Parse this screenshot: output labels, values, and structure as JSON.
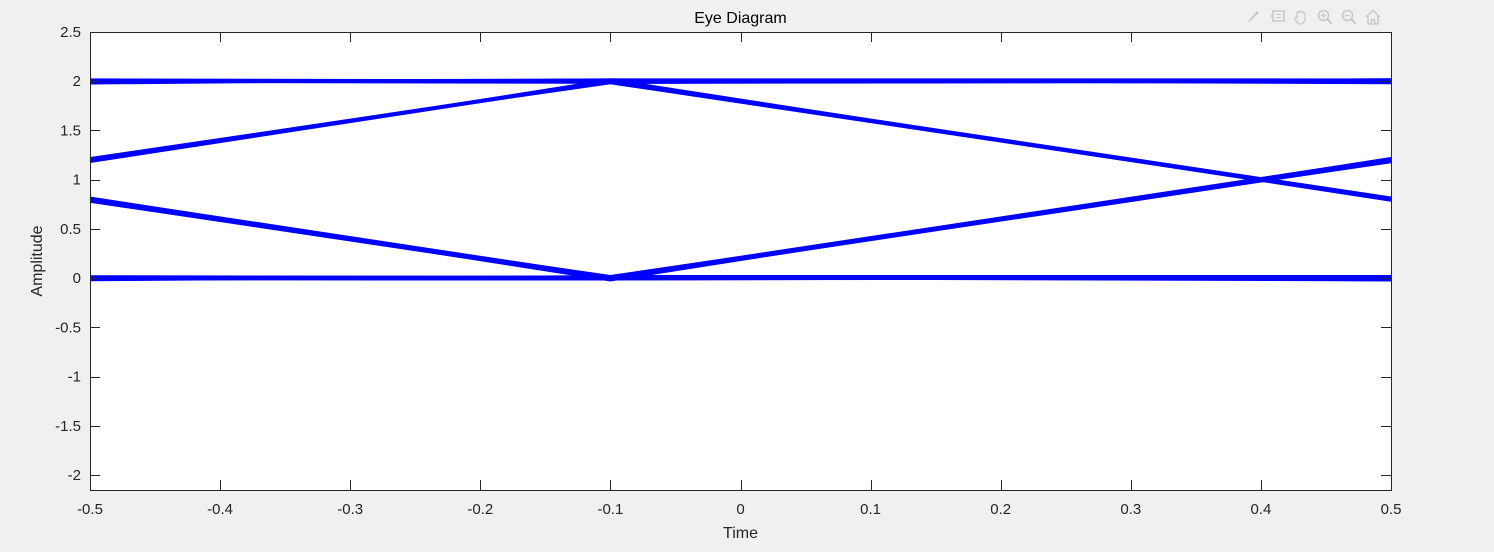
{
  "colors": {
    "series": "#0000ff",
    "axis": "#262626",
    "background_figure": "#f0f0f0",
    "background_axes": "#ffffff",
    "toolbar_icon": "#c8c8c8"
  },
  "toolbar": {
    "icons": [
      "brush-icon",
      "datatip-icon",
      "pan-icon",
      "zoom-in-icon",
      "zoom-out-icon",
      "home-icon"
    ]
  },
  "chart_data": {
    "type": "line",
    "title": "Eye Diagram",
    "xlabel": "Time",
    "ylabel": "Amplitude",
    "xlim": [
      -0.5,
      0.5
    ],
    "ylim": [
      -2.15,
      2.5
    ],
    "xticks": [
      -0.5,
      -0.4,
      -0.3,
      -0.2,
      -0.1,
      0,
      0.1,
      0.2,
      0.3,
      0.4,
      0.5
    ],
    "xtick_labels": [
      "-0.5",
      "-0.4",
      "-0.3",
      "-0.2",
      "-0.1",
      "0",
      "0.1",
      "0.2",
      "0.3",
      "0.4",
      "0.5"
    ],
    "yticks": [
      -2,
      -1.5,
      -1,
      -0.5,
      0,
      0.5,
      1,
      1.5,
      2,
      2.5
    ],
    "ytick_labels": [
      "-2",
      "-1.5",
      "-1",
      "-0.5",
      "0",
      "0.5",
      "1",
      "1.5",
      "2",
      "2.5"
    ],
    "grid": false,
    "series": [
      {
        "x": [
          -0.5,
          -0.1,
          0.5
        ],
        "y": [
          2,
          2,
          2
        ]
      },
      {
        "x": [
          -0.5,
          -0.1,
          0.5
        ],
        "y": [
          1.2,
          2,
          0.8
        ]
      },
      {
        "x": [
          -0.5,
          -0.1,
          0.5
        ],
        "y": [
          0.8,
          0,
          1.2
        ]
      },
      {
        "x": [
          -0.5,
          -0.1,
          0.5
        ],
        "y": [
          0,
          0,
          0
        ]
      }
    ]
  }
}
